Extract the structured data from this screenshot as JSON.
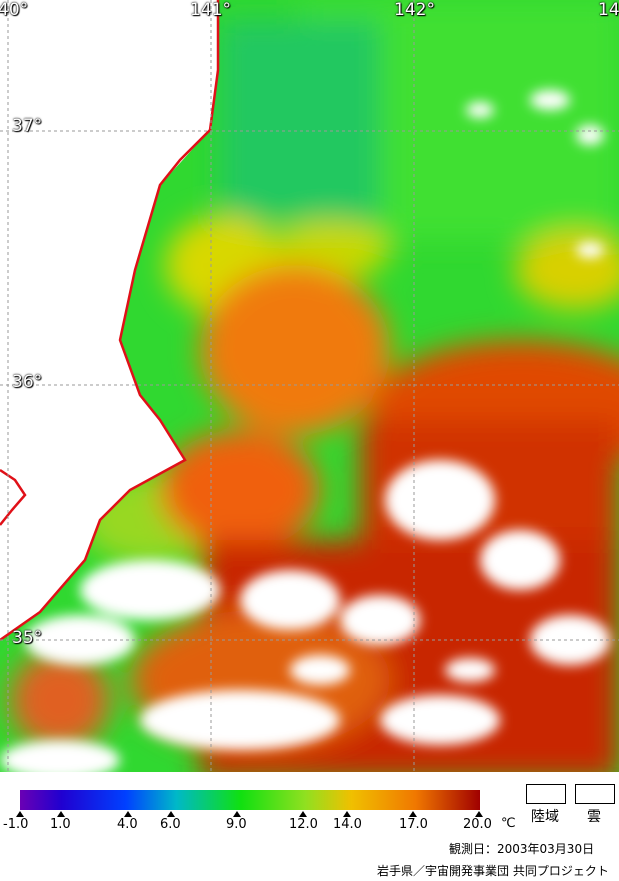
{
  "map": {
    "longitude_labels": [
      "40°",
      "141°",
      "142°",
      "14"
    ],
    "latitude_labels": [
      "37°",
      "36°",
      "35°"
    ]
  },
  "legend": {
    "tick_labels": [
      "-1.0",
      "1.0",
      "4.0",
      "6.0",
      "9.0",
      "12.0",
      "14.0",
      "17.0",
      "20.0"
    ],
    "unit": "℃",
    "colors": [
      "#6a00b4",
      "#1a14ff",
      "#0090ff",
      "#00d8c8",
      "#10e010",
      "#90e020",
      "#f0c000",
      "#f07800",
      "#d81000",
      "#a00000"
    ],
    "land_label": "陸域",
    "cloud_label": "雲"
  },
  "observation_date": "観測日：2003年03月30日",
  "credit": "岩手県／宇宙開発事業団 共同プロジェクト",
  "colors": {
    "coastline": "#e01018",
    "land": "#ffffff",
    "cloud": "#ffffff",
    "grid": "#9a9a9a"
  }
}
